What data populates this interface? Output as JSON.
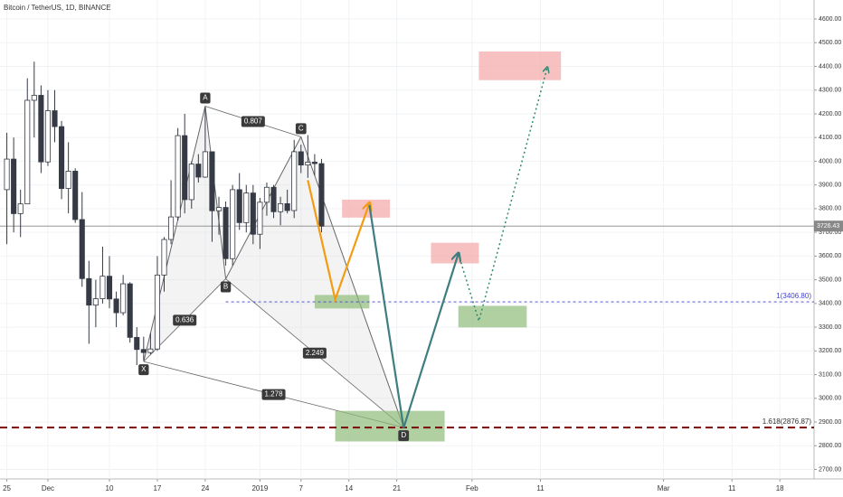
{
  "chart_data": {
    "type": "candlestick",
    "title": "Bitcoin / TetherUS, 1D, BINANCE",
    "x": [
      "2018-11-25",
      "2018-11-26",
      "2018-11-27",
      "2018-11-28",
      "2018-11-29",
      "2018-11-30",
      "2018-12-01",
      "2018-12-02",
      "2018-12-03",
      "2018-12-04",
      "2018-12-05",
      "2018-12-06",
      "2018-12-07",
      "2018-12-08",
      "2018-12-09",
      "2018-12-10",
      "2018-12-11",
      "2018-12-12",
      "2018-12-13",
      "2018-12-14",
      "2018-12-15",
      "2018-12-16",
      "2018-12-17",
      "2018-12-18",
      "2018-12-19",
      "2018-12-20",
      "2018-12-21",
      "2018-12-22",
      "2018-12-23",
      "2018-12-24",
      "2018-12-25",
      "2018-12-26",
      "2018-12-27",
      "2018-12-28",
      "2018-12-29",
      "2018-12-30",
      "2018-12-31",
      "2019-01-01",
      "2019-01-02",
      "2019-01-03",
      "2019-01-04",
      "2019-01-05",
      "2019-01-06",
      "2019-01-07",
      "2019-01-08",
      "2019-01-09",
      "2019-01-10"
    ],
    "open": [
      3880,
      4009,
      3779,
      3820,
      4257,
      4278,
      3997,
      4213,
      4146,
      3885,
      3958,
      3754,
      3505,
      3393,
      3420,
      3515,
      3419,
      3361,
      3483,
      3257,
      3206,
      3193,
      3208,
      3520,
      3670,
      3765,
      4108,
      3838,
      3988,
      3933,
      4040,
      3791,
      3805,
      3589,
      3880,
      3741,
      3866,
      3692,
      3827,
      3890,
      3787,
      3821,
      3792,
      4040,
      3984,
      3996,
      3990
    ],
    "high": [
      4120,
      4100,
      3880,
      4350,
      4420,
      4320,
      4300,
      4300,
      4170,
      4080,
      3970,
      3870,
      3580,
      3500,
      3640,
      3600,
      3450,
      3520,
      3490,
      3300,
      3260,
      3275,
      3600,
      3680,
      3920,
      4140,
      4200,
      4000,
      4030,
      4230,
      4040,
      3850,
      3830,
      3900,
      3950,
      3900,
      3900,
      3845,
      3910,
      3900,
      3850,
      3880,
      4090,
      4070,
      4110,
      4030,
      4010
    ],
    "low": [
      3650,
      3700,
      3680,
      3820,
      4100,
      3950,
      3980,
      4080,
      3840,
      3780,
      3740,
      3470,
      3230,
      3300,
      3400,
      3380,
      3300,
      3350,
      3235,
      3140,
      3160,
      3185,
      3200,
      3450,
      3650,
      3750,
      3780,
      3800,
      3910,
      3930,
      3660,
      3690,
      3560,
      3560,
      3710,
      3700,
      3650,
      3630,
      3770,
      3760,
      3730,
      3780,
      3760,
      3950,
      3930,
      3940,
      3700
    ],
    "close": [
      4009,
      3779,
      3820,
      4257,
      4278,
      3997,
      4213,
      4146,
      3885,
      3958,
      3754,
      3505,
      3393,
      3420,
      3515,
      3419,
      3361,
      3483,
      3257,
      3206,
      3193,
      3208,
      3520,
      3670,
      3765,
      4108,
      3838,
      3988,
      3933,
      4040,
      3791,
      3805,
      3589,
      3880,
      3741,
      3866,
      3692,
      3827,
      3890,
      3787,
      3821,
      3792,
      4040,
      3984,
      3996,
      3990,
      3726
    ],
    "up_color": "#ffffff",
    "down_color": "#363a45",
    "xlim": [
      "2018-11-24",
      "2019-03-23"
    ],
    "ylim": [
      2660,
      4680
    ],
    "xticks": [
      {
        "value": "2018-11-25",
        "label": "25"
      },
      {
        "value": "2018-12-01",
        "label": "Dec"
      },
      {
        "value": "2018-12-10",
        "label": "10"
      },
      {
        "value": "2018-12-17",
        "label": "17"
      },
      {
        "value": "2018-12-24",
        "label": "24"
      },
      {
        "value": "2019-01-01",
        "label": "2019"
      },
      {
        "value": "2019-01-07",
        "label": "7"
      },
      {
        "value": "2019-01-14",
        "label": "14"
      },
      {
        "value": "2019-01-21",
        "label": "21"
      },
      {
        "value": "2019-02-01",
        "label": "Feb"
      },
      {
        "value": "2019-02-11",
        "label": "11"
      },
      {
        "value": "2019-03-01",
        "label": "Mar"
      },
      {
        "value": "2019-03-11",
        "label": "11"
      },
      {
        "value": "2019-03-18",
        "label": "18"
      }
    ],
    "yticks": [
      {
        "value": 2700,
        "label": "2700.00"
      },
      {
        "value": 2800,
        "label": "2800.00"
      },
      {
        "value": 2900,
        "label": "2900.00"
      },
      {
        "value": 3000,
        "label": "3000.00"
      },
      {
        "value": 3100,
        "label": "3100.00"
      },
      {
        "value": 3200,
        "label": "3200.00"
      },
      {
        "value": 3300,
        "label": "3300.00"
      },
      {
        "value": 3400,
        "label": "3400.00"
      },
      {
        "value": 3500,
        "label": "3500.00"
      },
      {
        "value": 3600,
        "label": "3600.00"
      },
      {
        "value": 3700,
        "label": "3700.00"
      },
      {
        "value": 3800,
        "label": "3800.00"
      },
      {
        "value": 3900,
        "label": "3900.00"
      },
      {
        "value": 4000,
        "label": "4000.00"
      },
      {
        "value": 4100,
        "label": "4100.00"
      },
      {
        "value": 4200,
        "label": "4200.00"
      },
      {
        "value": 4300,
        "label": "4300.00"
      },
      {
        "value": 4400,
        "label": "4400.00"
      },
      {
        "value": 4500,
        "label": "4500.00"
      },
      {
        "value": 4600,
        "label": "4600.00"
      }
    ],
    "grid": true,
    "last_price": {
      "value": 3726.43,
      "label": "3726.43"
    },
    "levels": [
      {
        "value": 3406.8,
        "label": "1(3406.80)",
        "color": "#3f3fd0",
        "start": "2018-12-27"
      },
      {
        "value": 2876.87,
        "label": "1.618(2876.87)",
        "color": "#7a0a0a",
        "start": "2018-11-24"
      }
    ],
    "pattern": {
      "points": [
        {
          "label": "X",
          "date": "2018-12-15",
          "price": 3155
        },
        {
          "label": "A",
          "date": "2018-12-24",
          "price": 4232
        },
        {
          "label": "B",
          "date": "2018-12-27",
          "price": 3504
        },
        {
          "label": "C",
          "date": "2019-01-07",
          "price": 4103
        },
        {
          "label": "D",
          "date": "2019-01-22",
          "price": 2877
        }
      ],
      "ratios": [
        {
          "label": "0.807",
          "from": 1,
          "to": 3
        },
        {
          "label": "0.636",
          "from": 0,
          "to": 2
        },
        {
          "label": "2.249",
          "from": 2,
          "to": 4
        },
        {
          "label": "1.278",
          "from": 0,
          "to": 4
        }
      ]
    },
    "zones": [
      {
        "x0": "2019-01-13",
        "x1": "2019-01-20",
        "y0": 3762,
        "y1": 3838,
        "color": "#f4a7a7"
      },
      {
        "x0": "2019-01-09",
        "x1": "2019-01-17",
        "y0": 3379,
        "y1": 3436,
        "color": "#8fbc7a"
      },
      {
        "x0": "2019-01-26",
        "x1": "2019-02-02",
        "y0": 3569,
        "y1": 3656,
        "color": "#f4a7a7"
      },
      {
        "x0": "2019-01-30",
        "x1": "2019-02-09",
        "y0": 3299,
        "y1": 3390,
        "color": "#8fbc7a"
      },
      {
        "x0": "2019-02-02",
        "x1": "2019-02-14",
        "y0": 4342,
        "y1": 4463,
        "color": "#f4a7a7"
      },
      {
        "x0": "2019-01-12",
        "x1": "2019-01-28",
        "y0": 2818,
        "y1": 2947,
        "color": "#8fbc7a"
      }
    ],
    "paths": [
      {
        "color": "#f39c12",
        "style": "solid",
        "dates": [
          "2019-01-08",
          "2019-01-12",
          "2019-01-17"
        ],
        "prices": [
          3920,
          3417,
          3822
        ]
      },
      {
        "color": "#3e7d80",
        "style": "solid",
        "dates": [
          "2019-01-17",
          "2019-01-22",
          "2019-01-30"
        ],
        "prices": [
          3815,
          2875,
          3610
        ]
      },
      {
        "color": "#2e8b6e",
        "style": "dotted",
        "dates": [
          "2019-01-30",
          "2019-02-02",
          "2019-02-12"
        ],
        "prices": [
          3610,
          3326,
          4395
        ]
      }
    ]
  }
}
